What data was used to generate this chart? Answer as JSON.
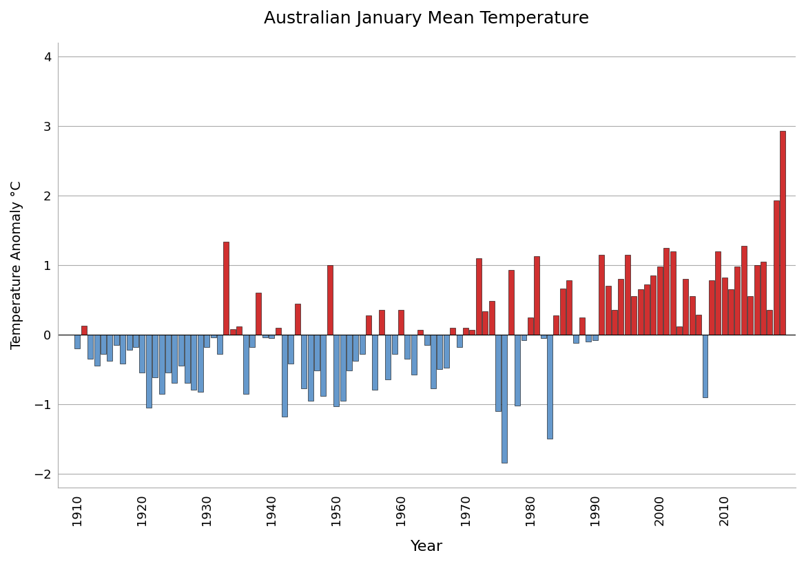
{
  "title": "Australian January Mean Temperature",
  "xlabel": "Year",
  "ylabel": "Temperature Anomaly °C",
  "ylim": [
    -2.2,
    4.2
  ],
  "yticks": [
    -2,
    -1,
    0,
    1,
    2,
    3,
    4
  ],
  "background_color": "#ffffff",
  "bar_color_positive": "#d03030",
  "bar_color_negative": "#6699cc",
  "years": [
    1910,
    1911,
    1912,
    1913,
    1914,
    1915,
    1916,
    1917,
    1918,
    1919,
    1920,
    1921,
    1922,
    1923,
    1924,
    1925,
    1926,
    1927,
    1928,
    1929,
    1930,
    1931,
    1932,
    1933,
    1934,
    1935,
    1936,
    1937,
    1938,
    1939,
    1940,
    1941,
    1942,
    1943,
    1944,
    1945,
    1946,
    1947,
    1948,
    1949,
    1950,
    1951,
    1952,
    1953,
    1954,
    1955,
    1956,
    1957,
    1958,
    1959,
    1960,
    1961,
    1962,
    1963,
    1964,
    1965,
    1966,
    1967,
    1968,
    1969,
    1970,
    1971,
    1972,
    1973,
    1974,
    1975,
    1976,
    1977,
    1978,
    1979,
    1980,
    1981,
    1982,
    1983,
    1984,
    1985,
    1986,
    1987,
    1988,
    1989,
    1990,
    1991,
    1992,
    1993,
    1994,
    1995,
    1996,
    1997,
    1998,
    1999,
    2000,
    2001,
    2002,
    2003,
    2004,
    2005,
    2006,
    2007,
    2008,
    2009,
    2010,
    2011,
    2012,
    2013,
    2014,
    2015,
    2016,
    2017,
    2018,
    2019
  ],
  "anomalies": [
    -0.2,
    0.13,
    -0.35,
    -0.45,
    -0.28,
    -0.38,
    -0.15,
    -0.42,
    -0.22,
    -0.18,
    -0.55,
    -1.05,
    -0.62,
    -0.85,
    -0.55,
    -0.7,
    -0.45,
    -0.7,
    -0.8,
    -0.82,
    -0.18,
    -0.04,
    -0.28,
    1.33,
    0.08,
    0.12,
    -0.85,
    -0.18,
    0.6,
    -0.04,
    -0.05,
    0.1,
    -1.18,
    -0.42,
    0.44,
    -0.78,
    -0.95,
    -0.52,
    -0.88,
    1.0,
    -1.03,
    -0.95,
    -0.52,
    -0.38,
    -0.28,
    0.27,
    -0.8,
    0.35,
    -0.65,
    -0.28,
    0.35,
    -0.35,
    -0.58,
    0.07,
    -0.15,
    -0.78,
    -0.5,
    -0.48,
    0.1,
    -0.18,
    0.1,
    0.07,
    1.1,
    0.33,
    0.48,
    -1.1,
    -1.85,
    0.93,
    -1.02,
    -0.08,
    0.25,
    1.13,
    -0.05,
    -1.5,
    0.27,
    0.66,
    0.78,
    -0.12,
    0.25,
    -0.1,
    -0.08,
    1.15,
    0.7,
    0.35,
    0.8,
    1.15,
    0.55,
    0.65,
    0.72,
    0.85,
    0.98,
    1.25,
    1.2,
    0.12,
    0.8,
    0.55,
    0.28,
    -0.9,
    0.78,
    1.2,
    0.82,
    0.65,
    0.98,
    1.28,
    0.55,
    1.0,
    1.05,
    0.35,
    1.93,
    2.93
  ]
}
